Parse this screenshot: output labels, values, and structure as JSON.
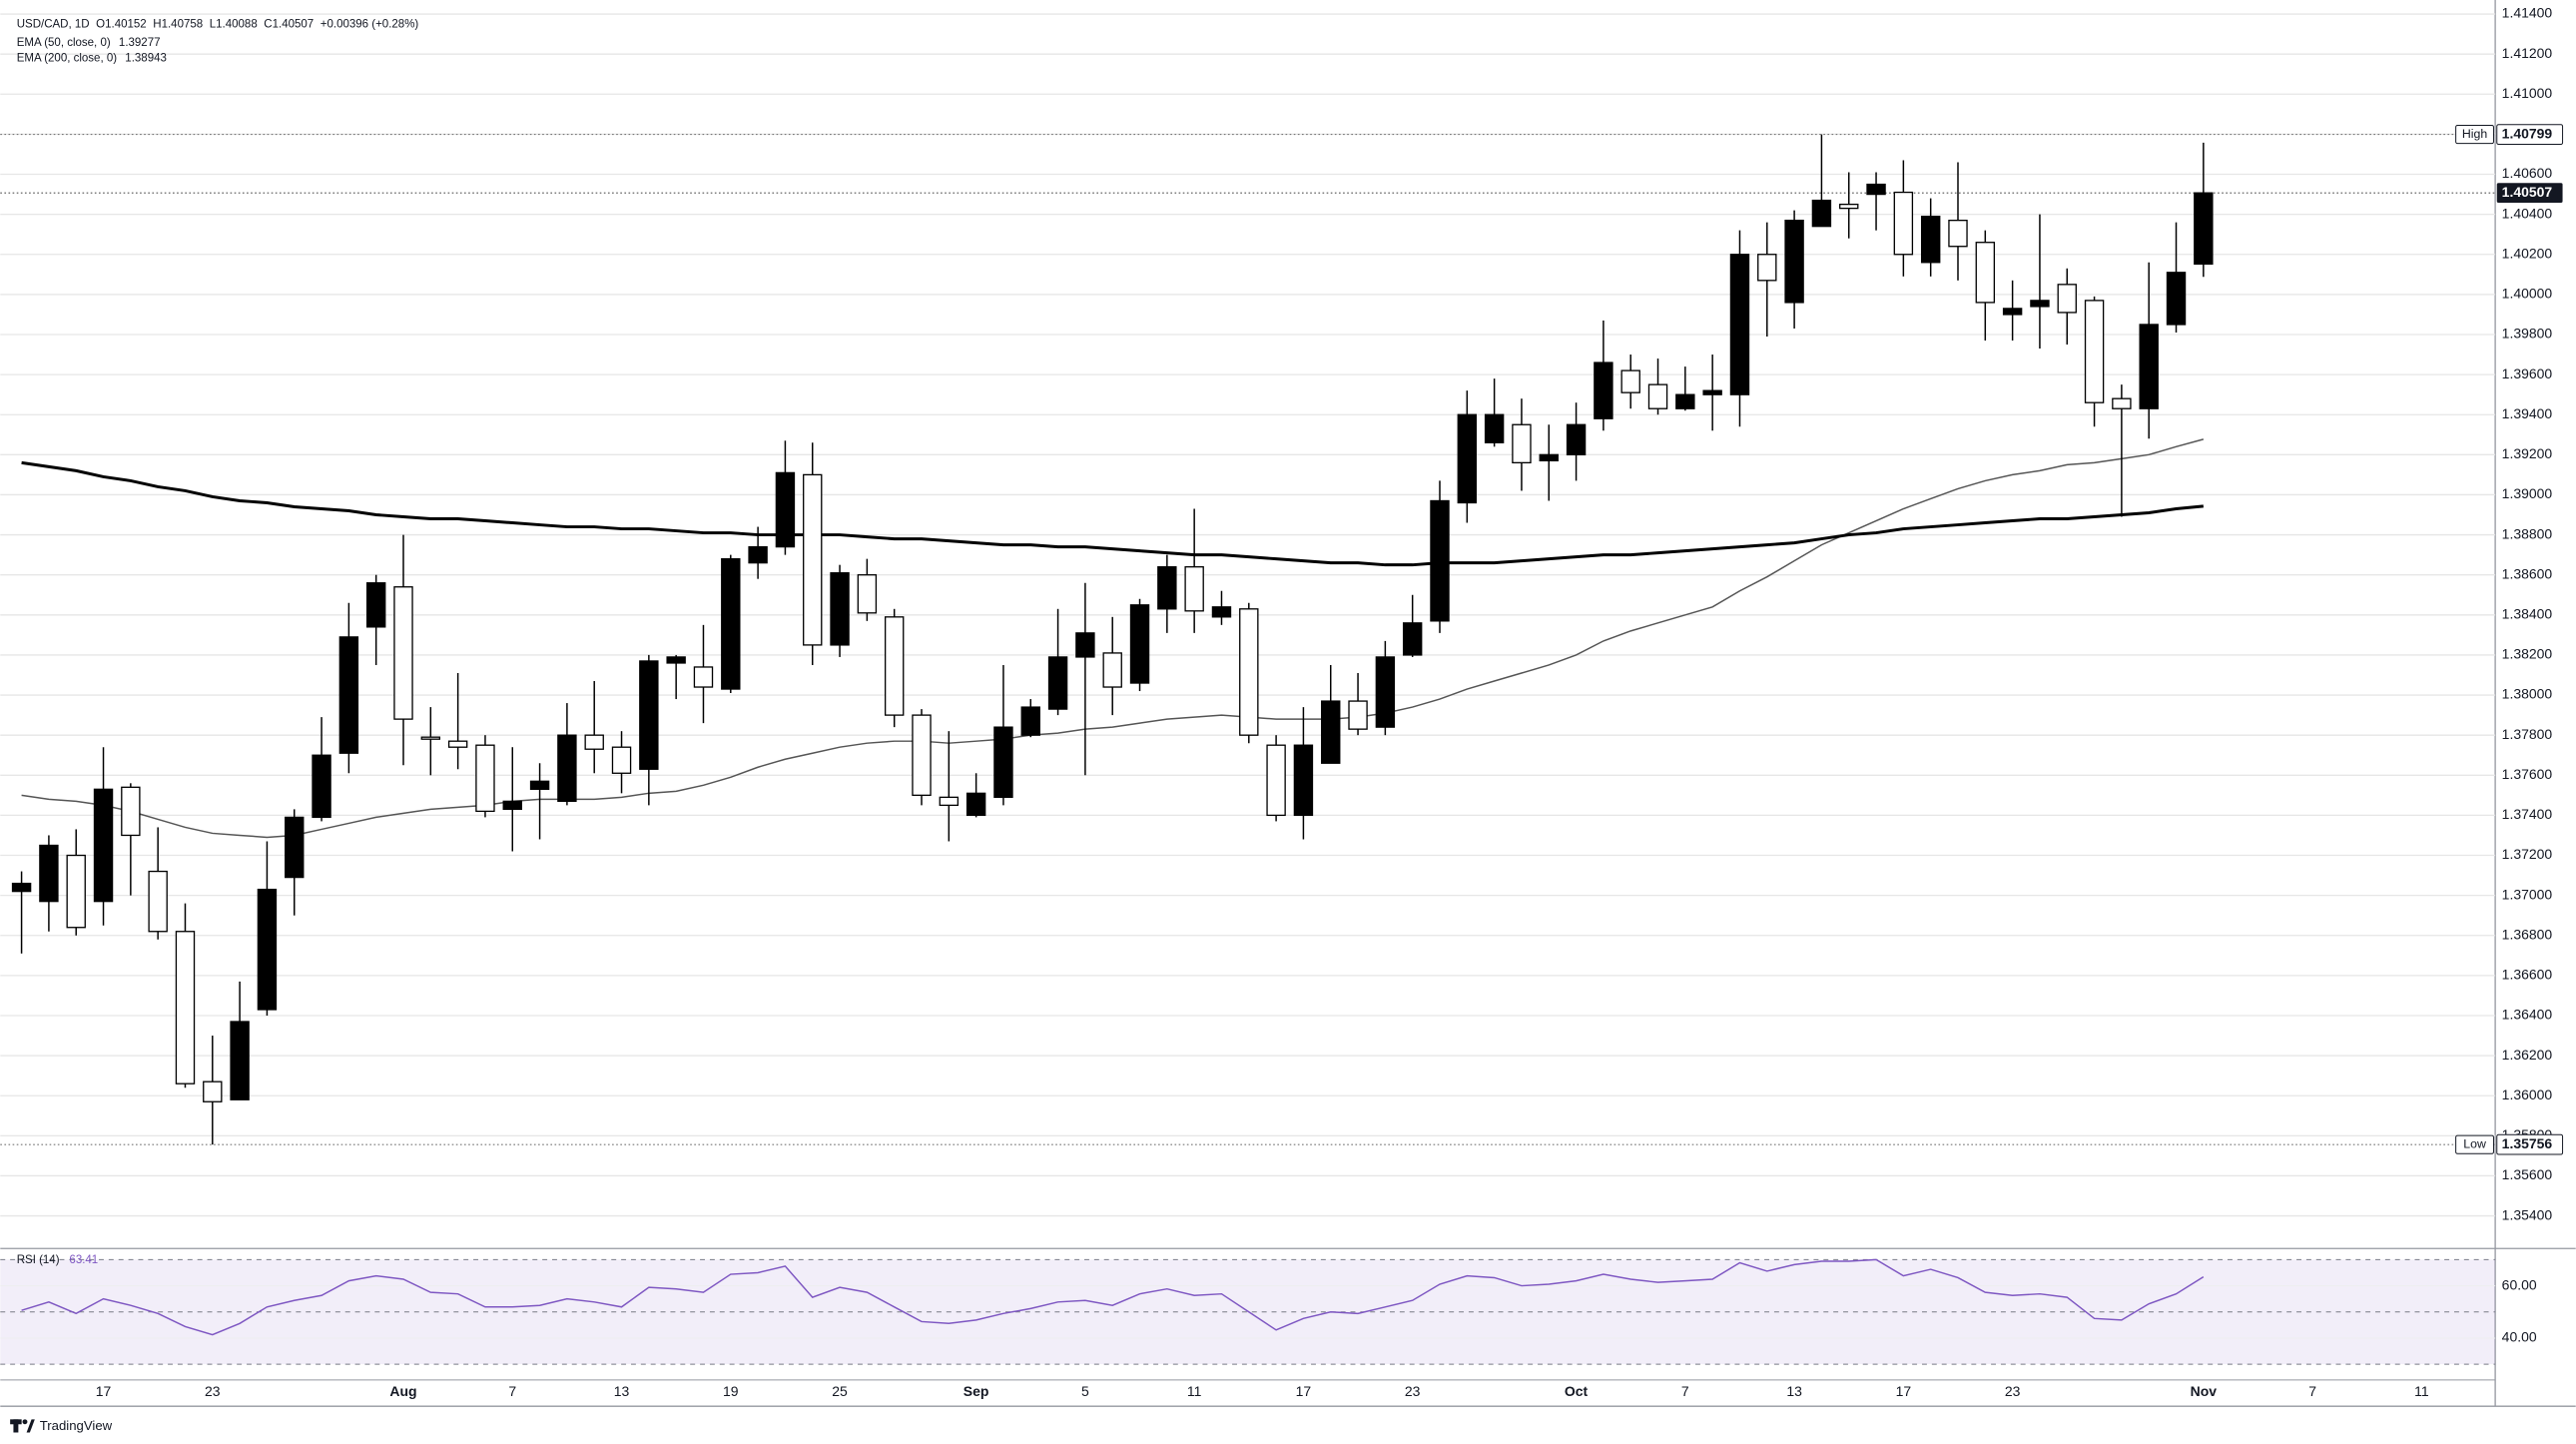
{
  "chart_data": {
    "type": "candlestick",
    "symbol": "USD/CAD, 1D",
    "ohlc_labels": [
      "O",
      "H",
      "L",
      "C"
    ],
    "change": "+0.00396 (+0.28%)",
    "open": [
      1.3702,
      1.3697,
      1.372,
      1.3697,
      1.3754,
      1.3712,
      1.3682,
      1.3607,
      1.3598,
      1.3643,
      1.3709,
      1.3739,
      1.3771,
      1.3834,
      1.3854,
      1.3779,
      1.3777,
      1.3775,
      1.3743,
      1.3753,
      1.3747,
      1.378,
      1.3774,
      1.3763,
      1.3816,
      1.3814,
      1.3803,
      1.3866,
      1.3874,
      1.391,
      1.3825,
      1.386,
      1.3839,
      1.379,
      1.3749,
      1.374,
      1.3749,
      1.378,
      1.3793,
      1.3819,
      1.3821,
      1.3806,
      1.3843,
      1.3864,
      1.3839,
      1.3843,
      1.3775,
      1.374,
      1.3766,
      1.3797,
      1.3784,
      1.382,
      1.3837,
      1.3896,
      1.3926,
      1.3935,
      1.3917,
      1.392,
      1.3938,
      1.3962,
      1.3955,
      1.3943,
      1.395,
      1.395,
      1.402,
      1.3996,
      1.4034,
      1.4045,
      1.405,
      1.4051,
      1.4016,
      1.4037,
      1.4026,
      1.399,
      1.3994,
      1.4005,
      1.3997,
      1.3948,
      1.3943,
      1.3985,
      1.40152
    ],
    "high": [
      1.3712,
      1.373,
      1.3733,
      1.3774,
      1.3756,
      1.3734,
      1.3696,
      1.363,
      1.3657,
      1.3727,
      1.3743,
      1.3789,
      1.3846,
      1.386,
      1.388,
      1.3794,
      1.3811,
      1.378,
      1.3774,
      1.3766,
      1.3796,
      1.3807,
      1.3782,
      1.382,
      1.382,
      1.3835,
      1.387,
      1.3884,
      1.3927,
      1.3926,
      1.3865,
      1.3868,
      1.3843,
      1.3793,
      1.3782,
      1.3761,
      1.3815,
      1.3798,
      1.3843,
      1.3856,
      1.3839,
      1.3848,
      1.387,
      1.3893,
      1.3852,
      1.3846,
      1.378,
      1.3794,
      1.3815,
      1.3811,
      1.3827,
      1.385,
      1.3907,
      1.3952,
      1.3958,
      1.3948,
      1.3935,
      1.3946,
      1.3987,
      1.397,
      1.3968,
      1.3964,
      1.397,
      1.4032,
      1.4036,
      1.4042,
      1.40799,
      1.4061,
      1.4061,
      1.4067,
      1.4048,
      1.4066,
      1.4032,
      1.4007,
      1.404,
      1.4013,
      1.3999,
      1.3955,
      1.4016,
      1.4036,
      1.40758
    ],
    "low": [
      1.3671,
      1.3682,
      1.368,
      1.3685,
      1.37,
      1.3678,
      1.3604,
      1.35756,
      1.3598,
      1.364,
      1.369,
      1.3737,
      1.3761,
      1.3815,
      1.3765,
      1.376,
      1.3763,
      1.3739,
      1.3722,
      1.3728,
      1.3745,
      1.3761,
      1.3751,
      1.3745,
      1.3798,
      1.3786,
      1.3801,
      1.3858,
      1.387,
      1.3815,
      1.3819,
      1.3837,
      1.3784,
      1.3745,
      1.3727,
      1.3739,
      1.3745,
      1.3779,
      1.379,
      1.376,
      1.379,
      1.3802,
      1.3831,
      1.3831,
      1.3835,
      1.3776,
      1.3737,
      1.3728,
      1.3766,
      1.378,
      1.378,
      1.3819,
      1.3831,
      1.3886,
      1.3924,
      1.3902,
      1.3897,
      1.3907,
      1.3932,
      1.3943,
      1.394,
      1.3942,
      1.3932,
      1.3934,
      1.3979,
      1.3983,
      1.4034,
      1.4028,
      1.4032,
      1.4009,
      1.4009,
      1.4007,
      1.3977,
      1.3977,
      1.3973,
      1.3975,
      1.3934,
      1.3889,
      1.3928,
      1.3981,
      1.40088
    ],
    "close": [
      1.3706,
      1.3725,
      1.3684,
      1.3753,
      1.373,
      1.3682,
      1.3606,
      1.3597,
      1.3637,
      1.3703,
      1.3739,
      1.377,
      1.3829,
      1.3856,
      1.3788,
      1.3778,
      1.3774,
      1.3742,
      1.3747,
      1.3757,
      1.378,
      1.3773,
      1.3761,
      1.3817,
      1.3819,
      1.3804,
      1.3868,
      1.3874,
      1.3911,
      1.3825,
      1.3861,
      1.3841,
      1.379,
      1.375,
      1.3745,
      1.3751,
      1.3784,
      1.3794,
      1.3819,
      1.3831,
      1.3804,
      1.3845,
      1.3864,
      1.3842,
      1.3844,
      1.378,
      1.374,
      1.3775,
      1.3797,
      1.3783,
      1.3819,
      1.3836,
      1.3897,
      1.394,
      1.394,
      1.3916,
      1.392,
      1.3935,
      1.3966,
      1.3951,
      1.3943,
      1.395,
      1.3952,
      1.402,
      1.4007,
      1.4037,
      1.4047,
      1.4043,
      1.4055,
      1.402,
      1.4039,
      1.4024,
      1.3996,
      1.3993,
      1.3997,
      1.3991,
      1.3946,
      1.3943,
      1.3985,
      1.4011,
      1.40507
    ],
    "up_color": "#000000",
    "down_color": "#ffffff",
    "border_color": "#000000",
    "xlim": [
      -0.78,
      90.7
    ],
    "xticks": [
      {
        "value": 3,
        "label": "17"
      },
      {
        "value": 7,
        "label": "23"
      },
      {
        "value": 14,
        "label": "Aug"
      },
      {
        "value": 18,
        "label": "7"
      },
      {
        "value": 22,
        "label": "13"
      },
      {
        "value": 26,
        "label": "19"
      },
      {
        "value": 30,
        "label": "25"
      },
      {
        "value": 35,
        "label": "Sep"
      },
      {
        "value": 39,
        "label": "5"
      },
      {
        "value": 43,
        "label": "11"
      },
      {
        "value": 47,
        "label": "17"
      },
      {
        "value": 51,
        "label": "23"
      },
      {
        "value": 57,
        "label": "Oct"
      },
      {
        "value": 61,
        "label": "7"
      },
      {
        "value": 65,
        "label": "13"
      },
      {
        "value": 69,
        "label": "17"
      },
      {
        "value": 73,
        "label": "23"
      },
      {
        "value": 80,
        "label": "Nov"
      },
      {
        "value": 84,
        "label": "7"
      },
      {
        "value": 88,
        "label": "11"
      }
    ],
    "ylim": [
      1.3527,
      1.4147
    ],
    "yticks": [
      {
        "value": 1.354,
        "label": "1.35400"
      },
      {
        "value": 1.356,
        "label": "1.35600"
      },
      {
        "value": 1.358,
        "label": "1.35800"
      },
      {
        "value": 1.36,
        "label": "1.36000"
      },
      {
        "value": 1.362,
        "label": "1.36200"
      },
      {
        "value": 1.364,
        "label": "1.36400"
      },
      {
        "value": 1.366,
        "label": "1.36600"
      },
      {
        "value": 1.368,
        "label": "1.36800"
      },
      {
        "value": 1.37,
        "label": "1.37000"
      },
      {
        "value": 1.372,
        "label": "1.37200"
      },
      {
        "value": 1.374,
        "label": "1.37400"
      },
      {
        "value": 1.376,
        "label": "1.37600"
      },
      {
        "value": 1.378,
        "label": "1.37800"
      },
      {
        "value": 1.38,
        "label": "1.38000"
      },
      {
        "value": 1.382,
        "label": "1.38200"
      },
      {
        "value": 1.384,
        "label": "1.38400"
      },
      {
        "value": 1.386,
        "label": "1.38600"
      },
      {
        "value": 1.388,
        "label": "1.38800"
      },
      {
        "value": 1.39,
        "label": "1.39000"
      },
      {
        "value": 1.392,
        "label": "1.39200"
      },
      {
        "value": 1.394,
        "label": "1.39400"
      },
      {
        "value": 1.396,
        "label": "1.39600"
      },
      {
        "value": 1.398,
        "label": "1.39800"
      },
      {
        "value": 1.4,
        "label": "1.40000"
      },
      {
        "value": 1.402,
        "label": "1.40200"
      },
      {
        "value": 1.404,
        "label": "1.40400"
      },
      {
        "value": 1.406,
        "label": "1.40600"
      },
      {
        "value": 1.408,
        "label": "1.40800"
      },
      {
        "value": 1.41,
        "label": "1.41000"
      },
      {
        "value": 1.412,
        "label": "1.41200"
      },
      {
        "value": 1.414,
        "label": "1.41400"
      }
    ],
    "grid": true,
    "overlays": [
      {
        "name": "EMA (50, close, 0)",
        "color": "#555555",
        "values": [
          1.375,
          1.3748,
          1.3747,
          1.3745,
          1.3742,
          1.3738,
          1.3734,
          1.3731,
          1.373,
          1.3729,
          1.373,
          1.3733,
          1.3736,
          1.3739,
          1.3741,
          1.3743,
          1.3744,
          1.3745,
          1.3747,
          1.3748,
          1.3748,
          1.3748,
          1.3749,
          1.3751,
          1.3752,
          1.3755,
          1.3759,
          1.3764,
          1.3768,
          1.3771,
          1.3774,
          1.3776,
          1.3777,
          1.3777,
          1.3776,
          1.3777,
          1.3778,
          1.378,
          1.3781,
          1.3783,
          1.3784,
          1.3786,
          1.3788,
          1.3789,
          1.379,
          1.3789,
          1.3788,
          1.3788,
          1.3788,
          1.3789,
          1.3791,
          1.3794,
          1.3798,
          1.3803,
          1.3807,
          1.3811,
          1.3815,
          1.382,
          1.3827,
          1.3832,
          1.3836,
          1.384,
          1.3844,
          1.3852,
          1.3859,
          1.3867,
          1.3875,
          1.3881,
          1.3887,
          1.3893,
          1.3898,
          1.3903,
          1.3907,
          1.391,
          1.3912,
          1.3915,
          1.3916,
          1.3918,
          1.392,
          1.3924,
          1.39277
        ]
      },
      {
        "name": "EMA (200, close, 0)",
        "color": "#000000",
        "values": [
          1.3916,
          1.3914,
          1.3912,
          1.3909,
          1.3907,
          1.3904,
          1.3902,
          1.3899,
          1.3897,
          1.3896,
          1.3894,
          1.3893,
          1.3892,
          1.389,
          1.3889,
          1.3888,
          1.3888,
          1.3887,
          1.3886,
          1.3885,
          1.3884,
          1.3884,
          1.3883,
          1.3883,
          1.3882,
          1.3881,
          1.3881,
          1.388,
          1.388,
          1.388,
          1.388,
          1.3879,
          1.3878,
          1.3878,
          1.3877,
          1.3876,
          1.3875,
          1.3875,
          1.3874,
          1.3874,
          1.3873,
          1.3872,
          1.3871,
          1.387,
          1.387,
          1.3869,
          1.3868,
          1.3867,
          1.3866,
          1.3866,
          1.3865,
          1.3865,
          1.3866,
          1.3866,
          1.3866,
          1.3867,
          1.3868,
          1.3869,
          1.387,
          1.387,
          1.3871,
          1.3872,
          1.3873,
          1.3874,
          1.3875,
          1.3876,
          1.3878,
          1.388,
          1.3881,
          1.3883,
          1.3884,
          1.3885,
          1.3886,
          1.3887,
          1.3888,
          1.3888,
          1.3889,
          1.389,
          1.3891,
          1.3893,
          1.38943
        ]
      }
    ],
    "levels": [
      {
        "label": "High",
        "value": 1.40799
      },
      {
        "label": "Low",
        "value": 1.35756
      }
    ],
    "rsi": {
      "name": "RSI (14)",
      "color": "#7e57c2",
      "values": [
        50.6,
        53.8,
        49.4,
        55.0,
        52.5,
        49.4,
        44.4,
        41.3,
        45.6,
        51.9,
        54.4,
        56.3,
        61.9,
        63.8,
        62.5,
        57.5,
        56.9,
        51.9,
        51.9,
        52.5,
        55.0,
        53.8,
        51.9,
        59.4,
        58.8,
        57.5,
        64.4,
        65.0,
        67.5,
        55.6,
        59.4,
        57.5,
        51.9,
        46.3,
        45.6,
        46.9,
        49.4,
        51.3,
        53.8,
        54.4,
        52.5,
        56.9,
        58.8,
        56.3,
        56.9,
        50.0,
        43.1,
        47.5,
        50.0,
        49.4,
        51.9,
        54.4,
        60.6,
        63.8,
        63.1,
        60.0,
        60.6,
        61.9,
        64.4,
        62.5,
        61.3,
        61.9,
        62.5,
        68.8,
        65.6,
        68.1,
        69.4,
        69.4,
        70.0,
        63.8,
        66.3,
        63.1,
        57.5,
        56.3,
        56.9,
        55.6,
        47.5,
        46.9,
        53.1,
        56.9,
        63.41
      ],
      "ylim": [
        24,
        73
      ],
      "yticks": [
        {
          "value": 40,
          "label": "40.00"
        },
        {
          "value": 60,
          "label": "60.00"
        }
      ],
      "band": [
        30,
        70
      ],
      "midline": 50
    },
    "watermark": "TradingView"
  }
}
